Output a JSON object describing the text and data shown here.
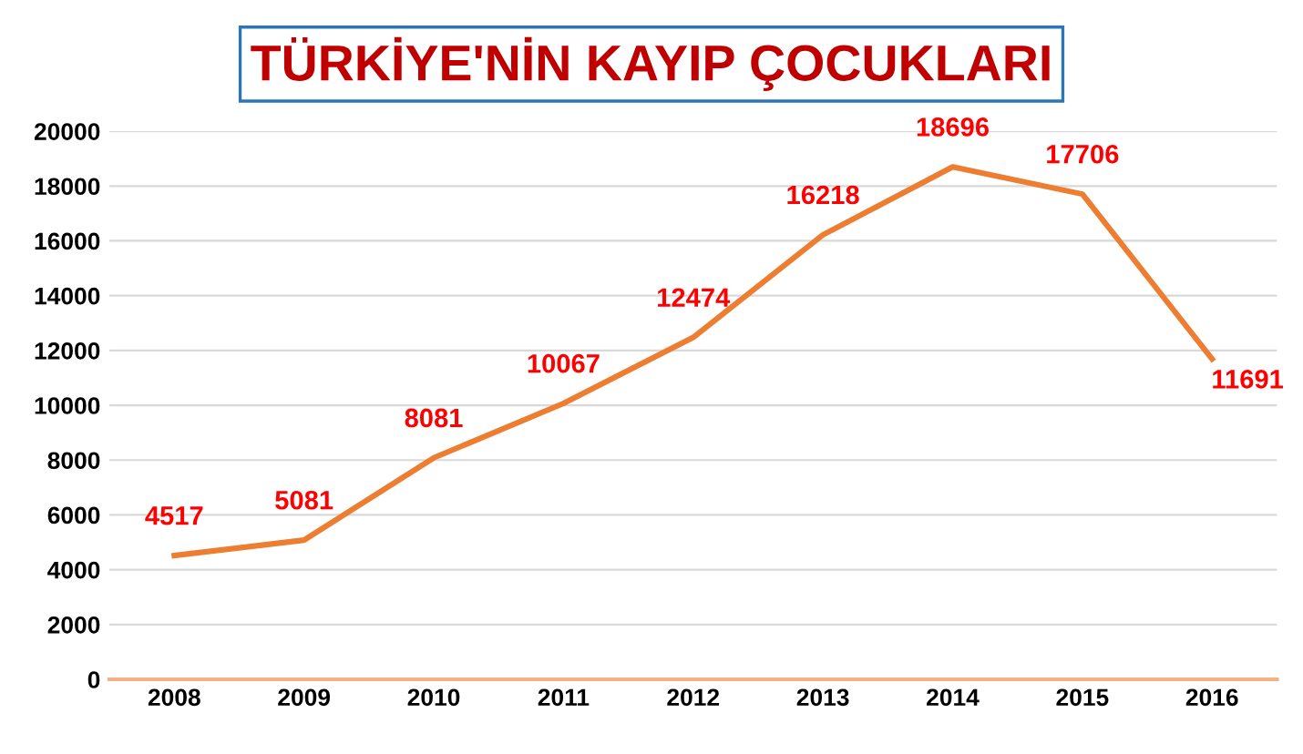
{
  "chart_data": {
    "type": "line",
    "title": "TÜRKİYE'NİN KAYIP ÇOCUKLARI",
    "categories": [
      "2008",
      "2009",
      "2010",
      "2011",
      "2012",
      "2013",
      "2014",
      "2015",
      "2016"
    ],
    "series": [
      {
        "color": "#ed7d31",
        "values": [
          4517,
          5081,
          8081,
          10067,
          12474,
          16218,
          18696,
          17706,
          11691
        ]
      }
    ],
    "ylim": [
      0,
      20000
    ],
    "yticks": [
      0,
      2000,
      4000,
      6000,
      8000,
      10000,
      12000,
      14000,
      16000,
      18000,
      20000
    ],
    "grid": "y",
    "data_labels": true,
    "marker": "none",
    "line_style": "solid",
    "legend": false
  }
}
